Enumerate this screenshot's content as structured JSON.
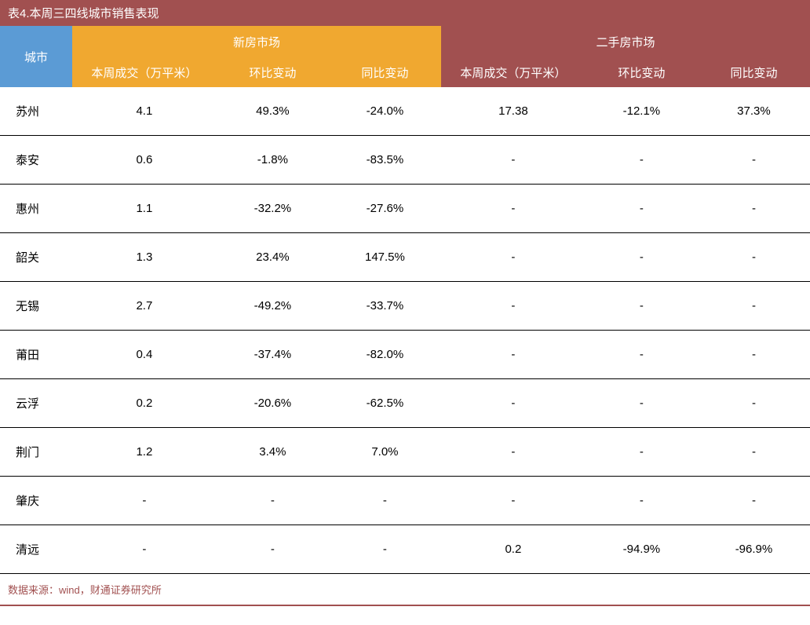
{
  "title": "表4.本周三四线城市销售表现",
  "header": {
    "city": "城市",
    "new_market": "新房市场",
    "secondhand_market": "二手房市场",
    "sub_volume": "本周成交（万平米）",
    "sub_mom": "环比变动",
    "sub_yoy": "同比变动"
  },
  "colors": {
    "title_bg": "#a15050",
    "city_bg": "#5b9bd5",
    "new_bg": "#f0a830",
    "secondhand_bg": "#a15050",
    "text_white": "#ffffff",
    "text_black": "#000000",
    "source_color": "#a15050"
  },
  "rows": [
    {
      "city": "苏州",
      "new_vol": "4.1",
      "new_mom": "49.3%",
      "new_yoy": "-24.0%",
      "sh_vol": "17.38",
      "sh_mom": "-12.1%",
      "sh_yoy": "37.3%"
    },
    {
      "city": "泰安",
      "new_vol": "0.6",
      "new_mom": "-1.8%",
      "new_yoy": "-83.5%",
      "sh_vol": "-",
      "sh_mom": "-",
      "sh_yoy": "-"
    },
    {
      "city": "惠州",
      "new_vol": "1.1",
      "new_mom": "-32.2%",
      "new_yoy": "-27.6%",
      "sh_vol": "-",
      "sh_mom": "-",
      "sh_yoy": "-"
    },
    {
      "city": "韶关",
      "new_vol": "1.3",
      "new_mom": "23.4%",
      "new_yoy": "147.5%",
      "sh_vol": "-",
      "sh_mom": "-",
      "sh_yoy": "-"
    },
    {
      "city": "无锡",
      "new_vol": "2.7",
      "new_mom": "-49.2%",
      "new_yoy": "-33.7%",
      "sh_vol": "-",
      "sh_mom": "-",
      "sh_yoy": "-"
    },
    {
      "city": "莆田",
      "new_vol": "0.4",
      "new_mom": "-37.4%",
      "new_yoy": "-82.0%",
      "sh_vol": "-",
      "sh_mom": "-",
      "sh_yoy": "-"
    },
    {
      "city": "云浮",
      "new_vol": "0.2",
      "new_mom": "-20.6%",
      "new_yoy": "-62.5%",
      "sh_vol": "-",
      "sh_mom": "-",
      "sh_yoy": "-"
    },
    {
      "city": "荆门",
      "new_vol": "1.2",
      "new_mom": "3.4%",
      "new_yoy": "7.0%",
      "sh_vol": "-",
      "sh_mom": "-",
      "sh_yoy": "-"
    },
    {
      "city": "肇庆",
      "new_vol": "-",
      "new_mom": "-",
      "new_yoy": "-",
      "sh_vol": "-",
      "sh_mom": "-",
      "sh_yoy": "-"
    },
    {
      "city": "清远",
      "new_vol": "-",
      "new_mom": "-",
      "new_yoy": "-",
      "sh_vol": "0.2",
      "sh_mom": "-94.9%",
      "sh_yoy": "-96.9%"
    }
  ],
  "source": "数据来源：wind，财通证券研究所"
}
